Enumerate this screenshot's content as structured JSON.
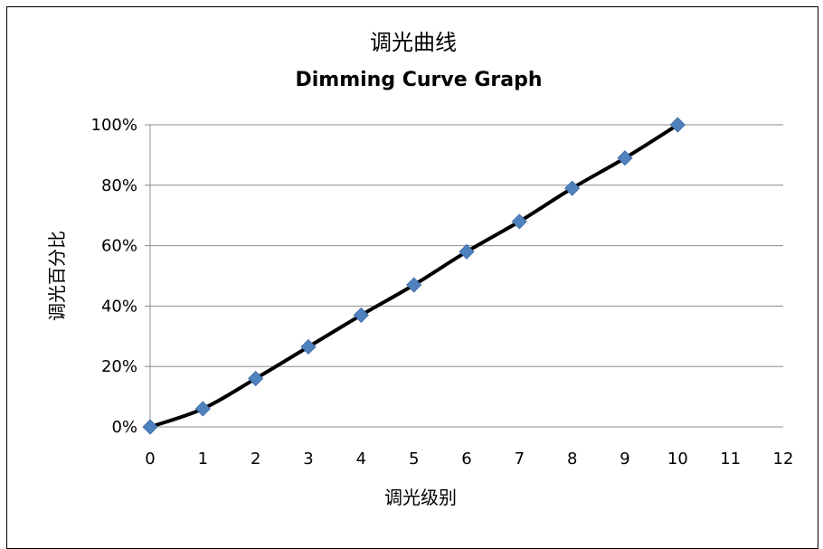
{
  "chart_data": {
    "type": "line",
    "title": "调光曲线",
    "subtitle": "Dimming Curve Graph",
    "xlabel": "调光级别",
    "ylabel": "调光百分比",
    "x_ticks": [
      "0",
      "1",
      "2",
      "3",
      "4",
      "5",
      "6",
      "7",
      "8",
      "9",
      "10",
      "11",
      "12"
    ],
    "y_ticks": [
      "0%",
      "20%",
      "40%",
      "60%",
      "80%",
      "100%"
    ],
    "xlim": [
      0,
      12
    ],
    "ylim": [
      0,
      100
    ],
    "grid": "horizontal",
    "legend": "none",
    "series": [
      {
        "x": [
          0,
          1,
          2,
          3,
          4,
          5,
          6,
          7,
          8,
          9,
          10
        ],
        "values": [
          0,
          6,
          16,
          26.5,
          37,
          47,
          58,
          68,
          79,
          89,
          100
        ],
        "line_color": "#000000",
        "marker": "diamond",
        "marker_color": "#4F81BD"
      }
    ]
  }
}
